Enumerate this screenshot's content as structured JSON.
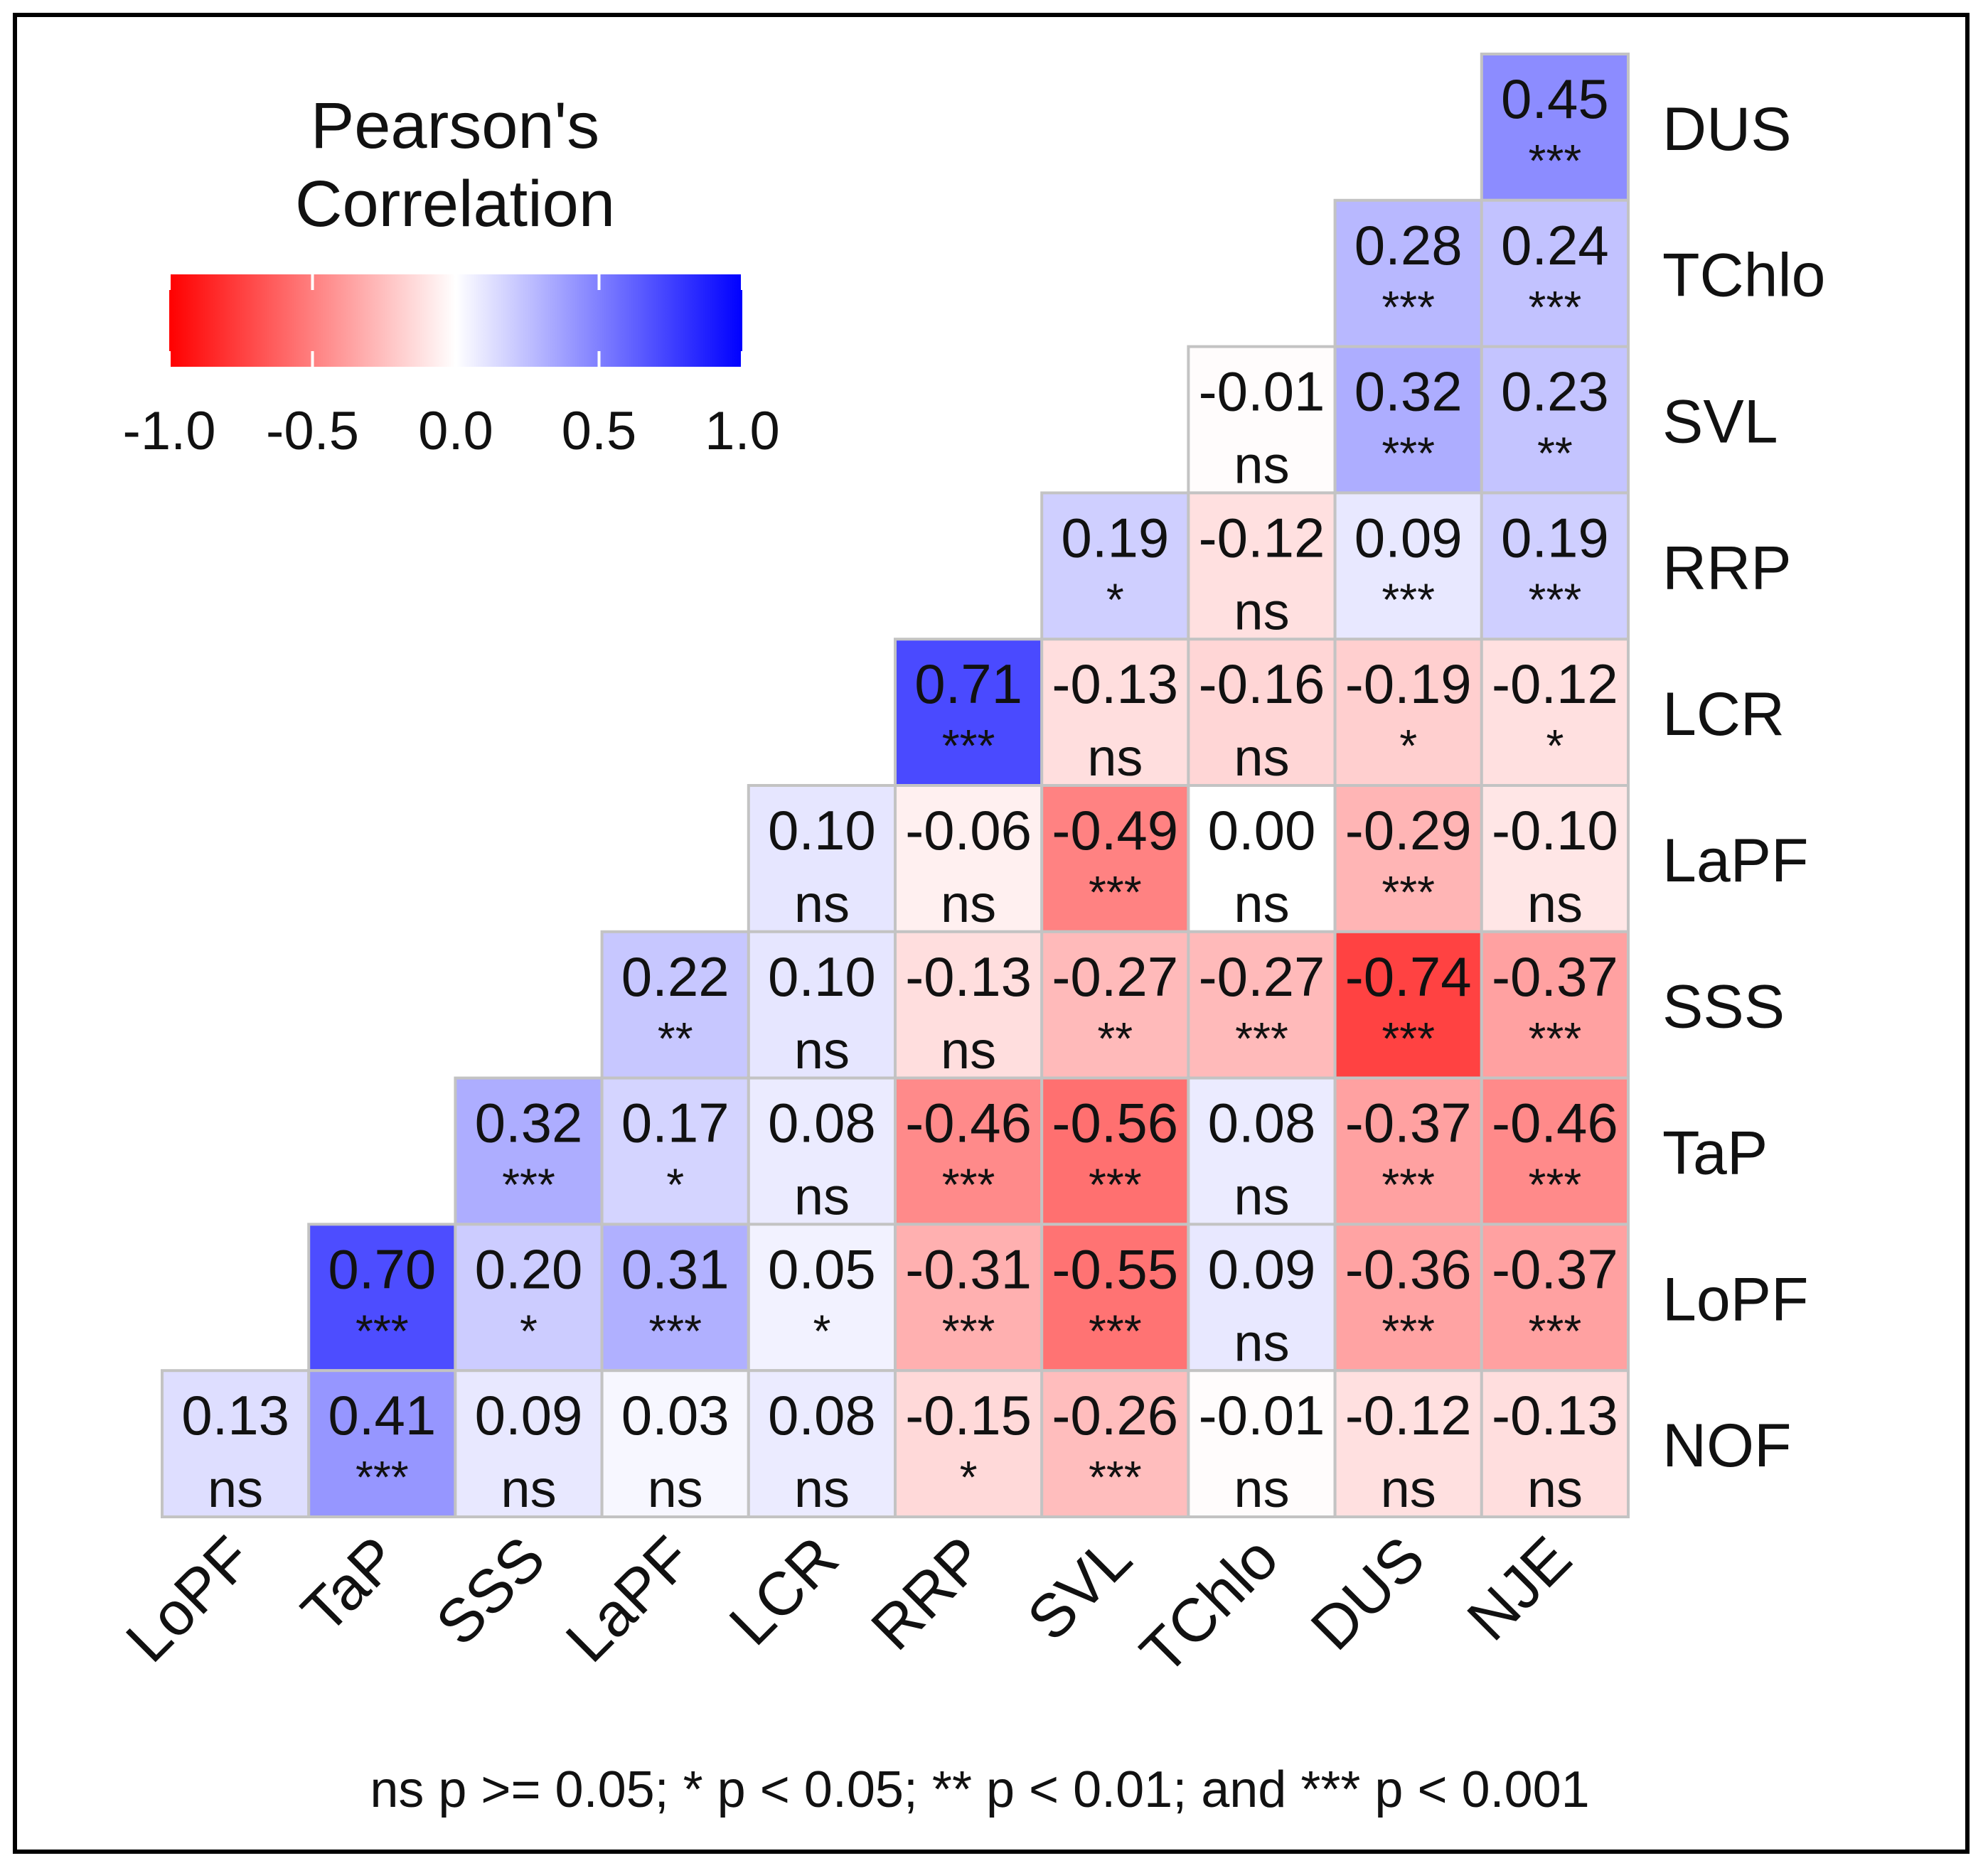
{
  "chart_data": {
    "type": "heatmap",
    "legend": {
      "title_line1": "Pearson's",
      "title_line2": "Correlation",
      "ticks": [
        "-1.0",
        "-0.5",
        "0.0",
        "0.5",
        "1.0"
      ],
      "range": [
        -1,
        1
      ],
      "colors": {
        "low": "#ff0000",
        "mid": "#ffffff",
        "high": "#0000ff"
      }
    },
    "x_labels": [
      "LoPF",
      "TaP",
      "SSS",
      "LaPF",
      "LCR",
      "RRP",
      "SVL",
      "TChlo",
      "DUS",
      "NJE"
    ],
    "y_labels": [
      "DUS",
      "TChlo",
      "SVL",
      "RRP",
      "LCR",
      "LaPF",
      "SSS",
      "TaP",
      "LoPF",
      "NOF"
    ],
    "rows": [
      {
        "label": "DUS",
        "start": 9,
        "values": [
          0.45
        ],
        "sig": [
          "***"
        ]
      },
      {
        "label": "TChlo",
        "start": 8,
        "values": [
          0.28,
          0.24
        ],
        "sig": [
          "***",
          "***"
        ]
      },
      {
        "label": "SVL",
        "start": 7,
        "values": [
          -0.01,
          0.32,
          0.23
        ],
        "sig": [
          "ns",
          "***",
          "**"
        ]
      },
      {
        "label": "RRP",
        "start": 6,
        "values": [
          0.19,
          -0.12,
          0.09,
          0.19
        ],
        "sig": [
          "*",
          "ns",
          "***",
          "***"
        ]
      },
      {
        "label": "LCR",
        "start": 5,
        "values": [
          0.71,
          -0.13,
          -0.16,
          -0.19,
          -0.12
        ],
        "sig": [
          "***",
          "ns",
          "ns",
          "*",
          "*"
        ]
      },
      {
        "label": "LaPF",
        "start": 4,
        "values": [
          0.1,
          -0.06,
          -0.49,
          0.0,
          -0.29,
          -0.1
        ],
        "sig": [
          "ns",
          "ns",
          "***",
          "ns",
          "***",
          "ns"
        ]
      },
      {
        "label": "SSS",
        "start": 3,
        "values": [
          0.22,
          0.1,
          -0.13,
          -0.27,
          -0.27,
          -0.74,
          -0.37
        ],
        "sig": [
          "**",
          "ns",
          "ns",
          "**",
          "***",
          "***",
          "***"
        ]
      },
      {
        "label": "TaP",
        "start": 2,
        "values": [
          0.32,
          0.17,
          0.08,
          -0.46,
          -0.56,
          0.08,
          -0.37,
          -0.46
        ],
        "sig": [
          "***",
          "*",
          "ns",
          "***",
          "***",
          "ns",
          "***",
          "***"
        ]
      },
      {
        "label": "LoPF",
        "start": 1,
        "values": [
          0.7,
          0.2,
          0.31,
          0.05,
          -0.31,
          -0.55,
          0.09,
          -0.36,
          -0.37
        ],
        "sig": [
          "***",
          "*",
          "***",
          "*",
          "***",
          "***",
          "ns",
          "***",
          "***"
        ]
      },
      {
        "label": "NOF",
        "start": 0,
        "values": [
          0.13,
          0.41,
          0.09,
          0.03,
          0.08,
          -0.15,
          -0.26,
          -0.01,
          -0.12,
          -0.13
        ],
        "sig": [
          "ns",
          "***",
          "ns",
          "ns",
          "ns",
          "*",
          "***",
          "ns",
          "ns",
          "ns"
        ]
      }
    ],
    "footnote": "ns p >= 0.05; * p < 0.05; ** p < 0.01; and *** p < 0.001"
  }
}
